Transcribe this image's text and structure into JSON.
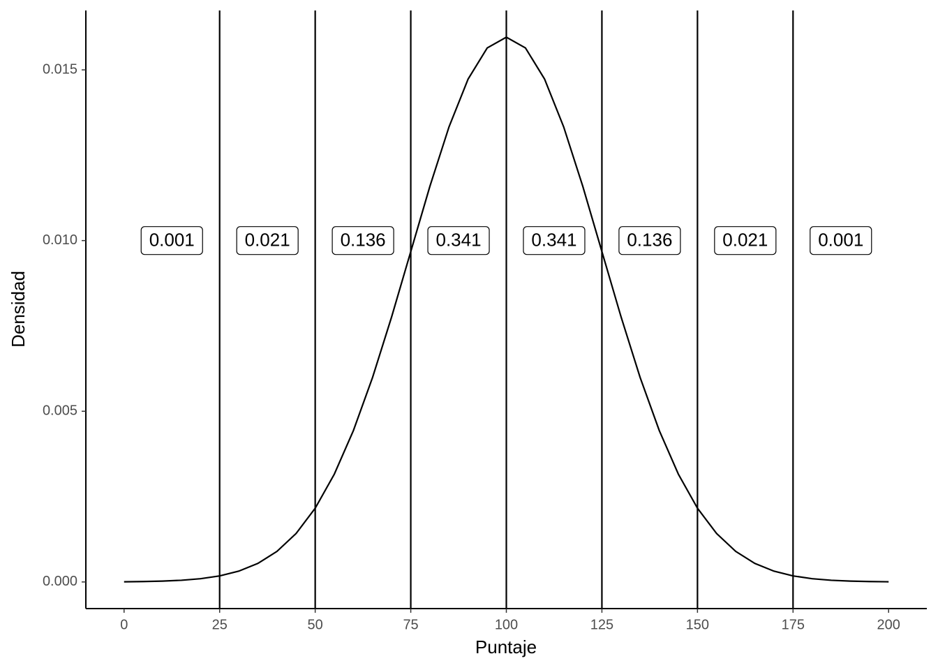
{
  "chart_data": {
    "type": "line",
    "x_label": "Puntaje",
    "y_label": "Densidad",
    "x": [
      0,
      5,
      10,
      15,
      20,
      25,
      30,
      35,
      40,
      45,
      50,
      55,
      60,
      65,
      70,
      75,
      80,
      85,
      90,
      95,
      100,
      105,
      110,
      115,
      120,
      125,
      130,
      135,
      140,
      145,
      150,
      155,
      160,
      165,
      170,
      175,
      180,
      185,
      190,
      195,
      200
    ],
    "series": [
      {
        "color": "#000000",
        "values": [
          5.3e-06,
          1.17e-05,
          2.45e-05,
          4.93e-05,
          9.54e-05,
          0.000177,
          0.000317,
          0.000543,
          0.000896,
          0.001419,
          0.00216,
          0.003158,
          0.004437,
          0.005989,
          0.007768,
          0.009679,
          0.011588,
          0.013329,
          0.014731,
          0.015642,
          0.015958,
          0.015642,
          0.014731,
          0.013329,
          0.011588,
          0.009679,
          0.007768,
          0.005989,
          0.004437,
          0.003158,
          0.00216,
          0.001419,
          0.000896,
          0.000543,
          0.000317,
          0.000177,
          9.54e-05,
          4.93e-05,
          2.45e-05,
          1.17e-05,
          5.3e-06
        ]
      }
    ],
    "vlines": [
      25,
      50,
      75,
      100,
      125,
      150,
      175
    ],
    "annotations": [
      {
        "x": 12.5,
        "y": 0.01,
        "text": "0.001"
      },
      {
        "x": 37.5,
        "y": 0.01,
        "text": "0.021"
      },
      {
        "x": 62.5,
        "y": 0.01,
        "text": "0.136"
      },
      {
        "x": 87.5,
        "y": 0.01,
        "text": "0.341"
      },
      {
        "x": 112.5,
        "y": 0.01,
        "text": "0.341"
      },
      {
        "x": 137.5,
        "y": 0.01,
        "text": "0.136"
      },
      {
        "x": 162.5,
        "y": 0.01,
        "text": "0.021"
      },
      {
        "x": 187.5,
        "y": 0.01,
        "text": "0.001"
      }
    ],
    "xlim": [
      -10,
      210
    ],
    "ylim": [
      -0.00078,
      0.01674
    ],
    "xticks": [
      0,
      25,
      50,
      75,
      100,
      125,
      150,
      175,
      200
    ],
    "yticks": [
      {
        "value": 0,
        "label": "0.000"
      },
      0.005,
      {
        "value": 0.01,
        "label": "0.010"
      },
      0.015
    ],
    "grid": false
  }
}
